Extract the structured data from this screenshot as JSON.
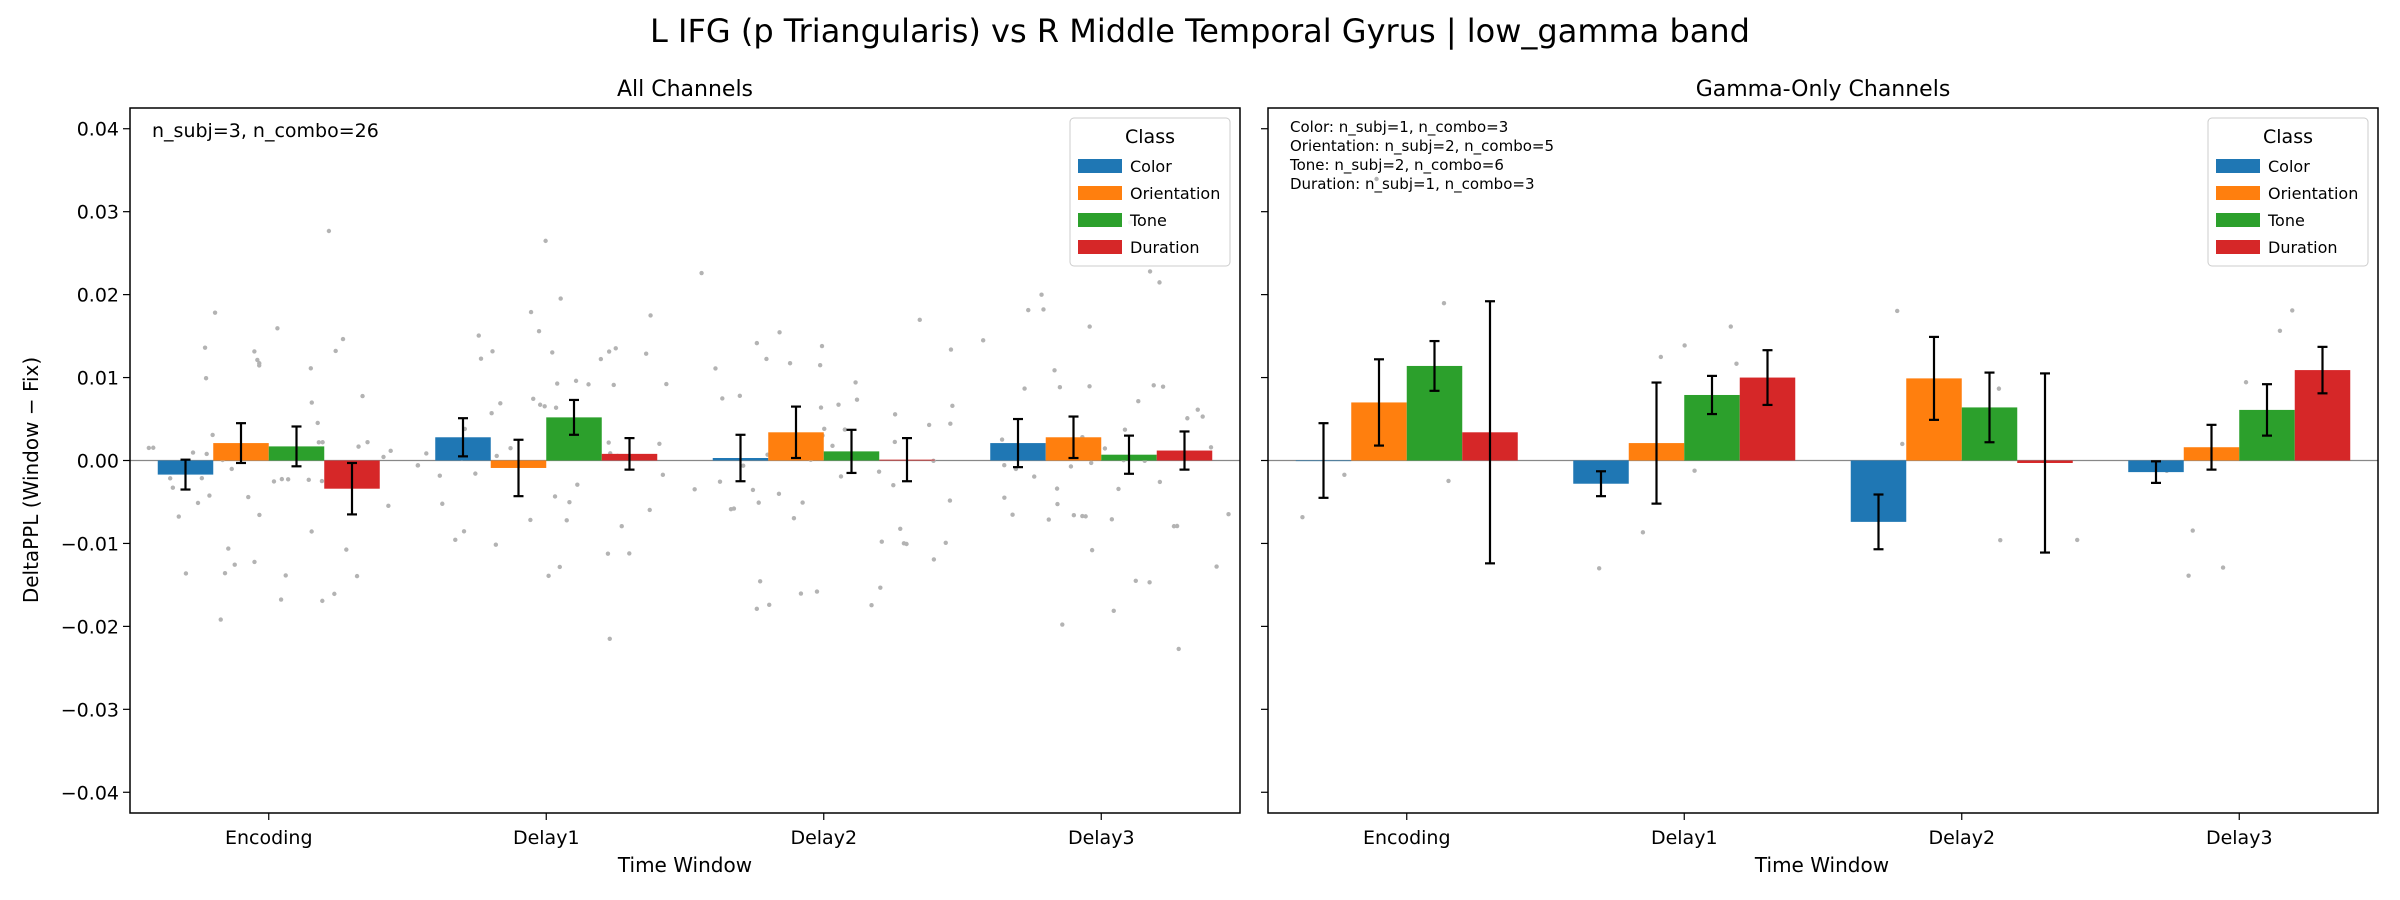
{
  "figure": {
    "suptitle": "L IFG (p Triangularis) vs R Middle Temporal Gyrus  |  low_gamma band",
    "ylabel": "DeltaPPL (Window − Fix)",
    "xlabel": "Time Window"
  },
  "chart_data": [
    {
      "type": "bar",
      "title": "All Channels",
      "xlabel": "Time Window",
      "ylabel": "DeltaPPL (Window − Fix)",
      "ylim": [
        -0.0425,
        0.0425
      ],
      "yticks": [
        -0.04,
        -0.03,
        -0.02,
        -0.01,
        0.0,
        0.01,
        0.02,
        0.03,
        0.04
      ],
      "ytick_labels": [
        "−0.04",
        "−0.03",
        "−0.02",
        "−0.01",
        "0.00",
        "0.01",
        "0.02",
        "0.03",
        "0.04"
      ],
      "categories": [
        "Encoding",
        "Delay1",
        "Delay2",
        "Delay3"
      ],
      "annotation": [
        "n_subj=3, n_combo=26"
      ],
      "legend": {
        "title": "Class",
        "position": "top-right"
      },
      "series": [
        {
          "name": "Color",
          "color": "#1f77b4",
          "values": [
            -0.0017,
            0.0028,
            0.0003,
            0.0021
          ],
          "err": [
            0.0018,
            0.0023,
            0.0028,
            0.0029
          ]
        },
        {
          "name": "Orientation",
          "color": "#ff7f0e",
          "values": [
            0.0021,
            -0.0009,
            0.0034,
            0.0028
          ],
          "err": [
            0.0024,
            0.0034,
            0.0031,
            0.0025
          ]
        },
        {
          "name": "Tone",
          "color": "#2ca02c",
          "values": [
            0.0017,
            0.0052,
            0.0011,
            0.0007
          ],
          "err": [
            0.0024,
            0.0021,
            0.0026,
            0.0023
          ]
        },
        {
          "name": "Duration",
          "color": "#d62728",
          "values": [
            -0.0034,
            0.0008,
            0.0001,
            0.0012
          ],
          "err": [
            0.0031,
            0.0019,
            0.0026,
            0.0023
          ]
        }
      ],
      "scatter_points": true
    },
    {
      "type": "bar",
      "title": "Gamma-Only Channels",
      "xlabel": "Time Window",
      "ylim": [
        -0.0425,
        0.0425
      ],
      "categories": [
        "Encoding",
        "Delay1",
        "Delay2",
        "Delay3"
      ],
      "annotation": [
        "Color: n_subj=1, n_combo=3",
        "Orientation: n_subj=2, n_combo=5",
        "Tone: n_subj=2, n_combo=6",
        "Duration: n_subj=1, n_combo=3"
      ],
      "legend": {
        "title": "Class",
        "position": "top-right"
      },
      "series": [
        {
          "name": "Color",
          "color": "#1f77b4",
          "values": [
            0.0,
            -0.0028,
            -0.0074,
            -0.0014
          ],
          "err": [
            0.0045,
            0.0015,
            0.0033,
            0.0013
          ]
        },
        {
          "name": "Orientation",
          "color": "#ff7f0e",
          "values": [
            0.007,
            0.0021,
            0.0099,
            0.0016
          ],
          "err": [
            0.0052,
            0.0073,
            0.005,
            0.0027
          ]
        },
        {
          "name": "Tone",
          "color": "#2ca02c",
          "values": [
            0.0114,
            0.0079,
            0.0064,
            0.0061
          ],
          "err": [
            0.003,
            0.0023,
            0.0042,
            0.0031
          ]
        },
        {
          "name": "Duration",
          "color": "#d62728",
          "values": [
            0.0034,
            0.01,
            -0.0003,
            0.0109
          ],
          "err": [
            0.0158,
            0.0033,
            0.0108,
            0.0028
          ]
        }
      ],
      "scatter_points": true
    }
  ]
}
